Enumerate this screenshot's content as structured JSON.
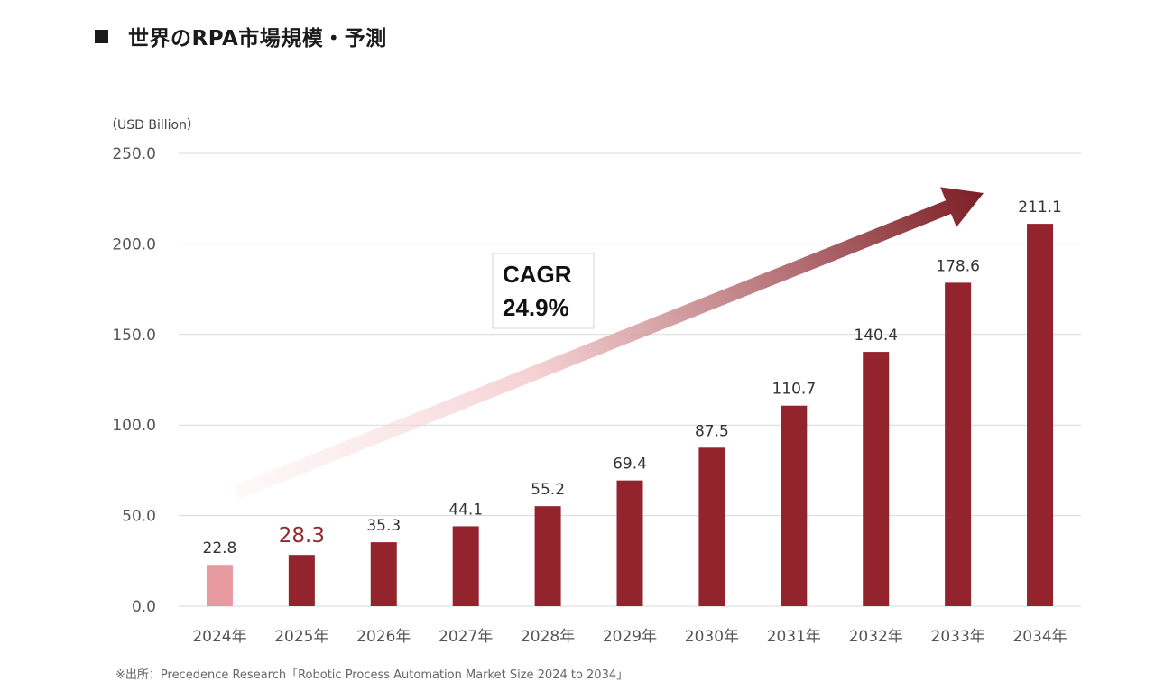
{
  "title": "世界のRPA市場規模・予測",
  "source_note": "※出所：Precedence Research「Robotic Process Automation Market Size 2024 to 2034」",
  "colors": {
    "bar": "#93232d",
    "bar_first": "#e79a9f",
    "highlight_label": "#8f2a32",
    "arrow_start": "#fbe9ea",
    "arrow_end": "#7b1e24",
    "grid": "#d9d9d9"
  },
  "chart_data": {
    "type": "bar",
    "unit_label": "（USD Billion）",
    "categories": [
      "2024年",
      "2025年",
      "2026年",
      "2027年",
      "2028年",
      "2029年",
      "2030年",
      "2031年",
      "2032年",
      "2033年",
      "2034年"
    ],
    "values": [
      22.8,
      28.3,
      35.3,
      44.1,
      55.2,
      69.4,
      87.5,
      110.7,
      140.4,
      178.6,
      211.1
    ],
    "value_labels": [
      "22.8",
      "28.3",
      "35.3",
      "44.1",
      "55.2",
      "69.4",
      "87.5",
      "110.7",
      "140.4",
      "178.6",
      "211.1"
    ],
    "y_ticks": [
      "0.0",
      "50.0",
      "100.0",
      "150.0",
      "200.0",
      "250.0"
    ],
    "ylim": [
      0,
      250
    ],
    "highlight_index": 1,
    "annotation": {
      "line1": "CAGR",
      "line2": "24.9%"
    },
    "grid": true
  }
}
